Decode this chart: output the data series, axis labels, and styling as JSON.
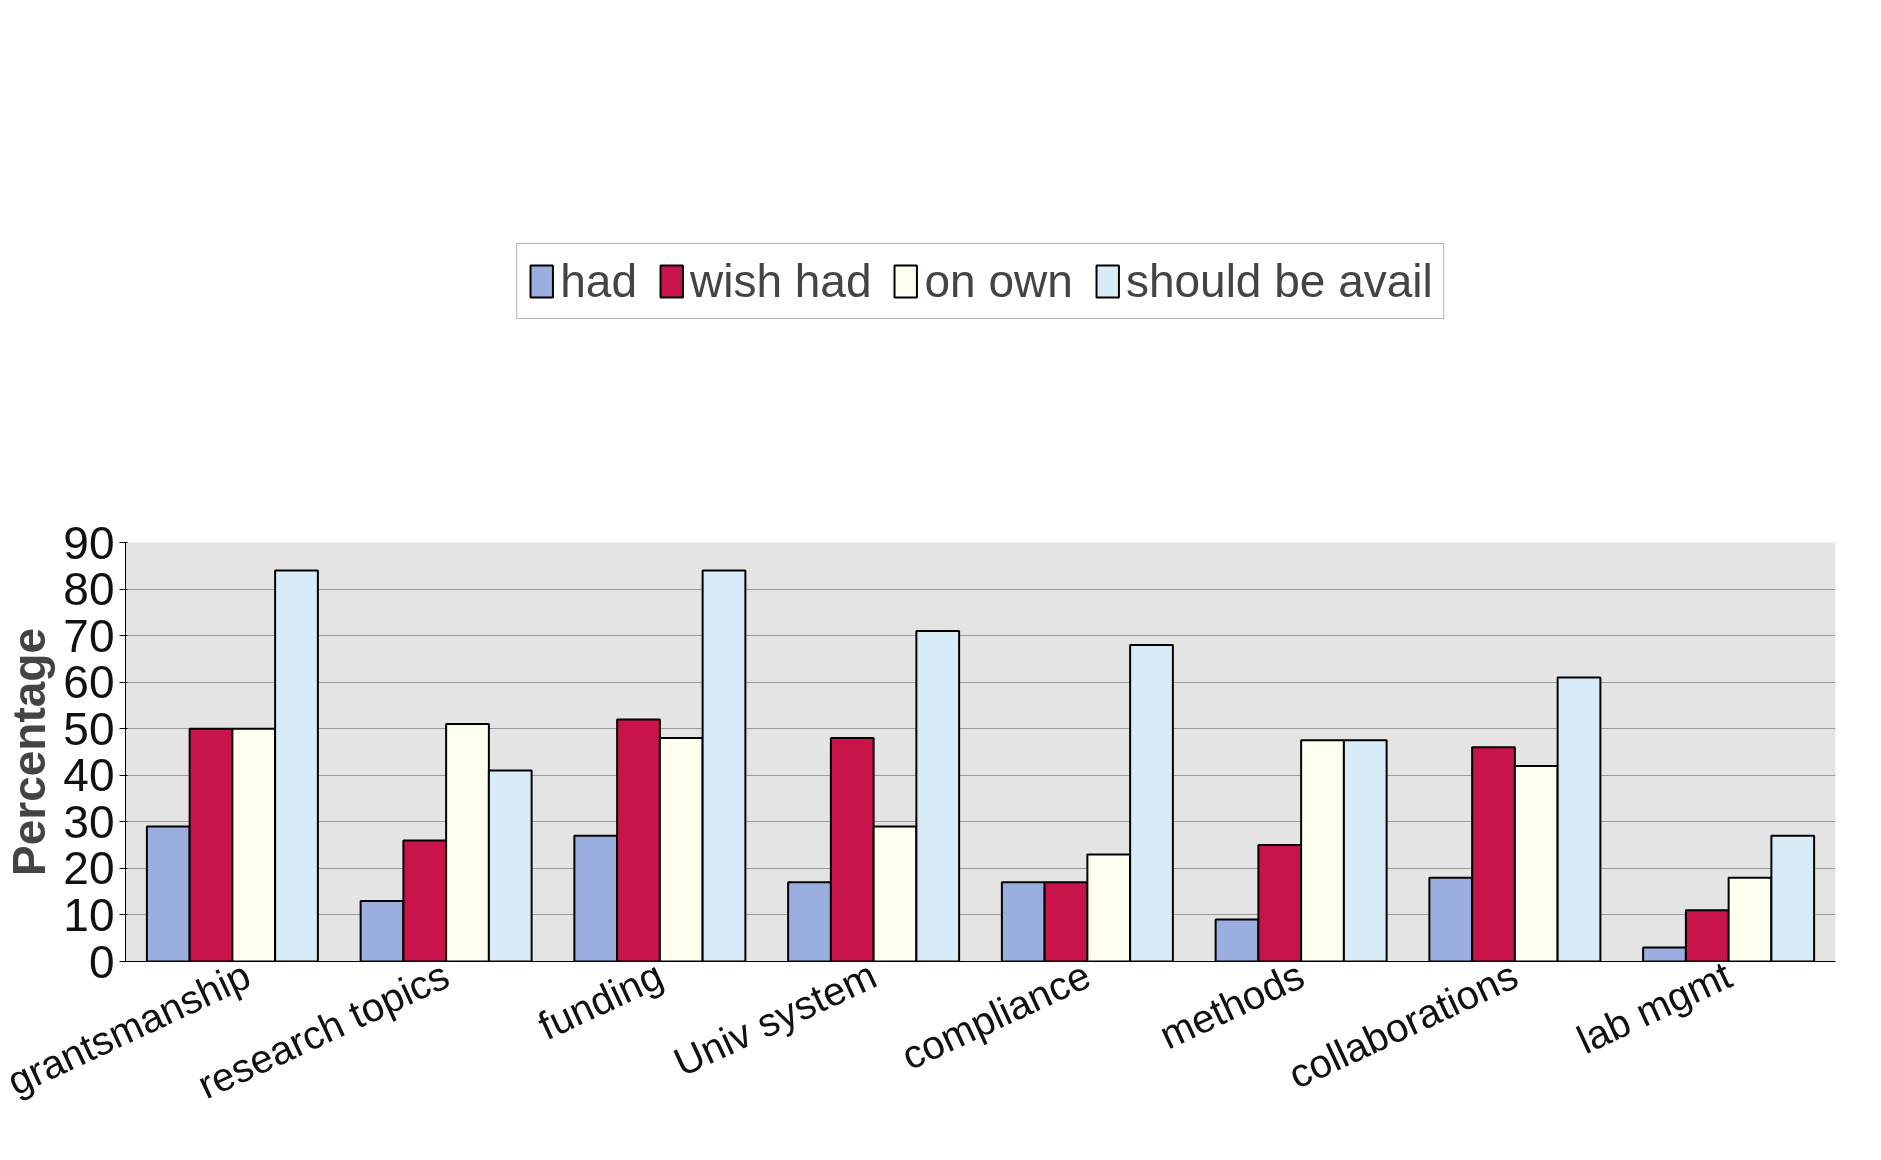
{
  "chart_data": {
    "type": "bar",
    "ylabel": "Percentage",
    "categories": [
      "grantsmanship",
      "research topics",
      "funding",
      "Univ system",
      "compliance",
      "methods",
      "collaborations",
      "lab mgmt"
    ],
    "series": [
      {
        "name": "had",
        "color": "#9aaee0",
        "values": [
          29,
          13,
          27,
          17,
          17,
          9,
          18,
          3
        ]
      },
      {
        "name": "wish had",
        "color": "#c8144a",
        "values": [
          50,
          26,
          52,
          48,
          17,
          25,
          46,
          11
        ]
      },
      {
        "name": "on own",
        "color": "#fffff0",
        "values": [
          50,
          51,
          48,
          29,
          23,
          47.5,
          42,
          18
        ]
      },
      {
        "name": "should be avail",
        "color": "#d8ecf8",
        "values": [
          84,
          41,
          84,
          71,
          68,
          47.5,
          61,
          27
        ]
      }
    ],
    "ylim": [
      0,
      90
    ],
    "yticks": [
      0,
      10,
      20,
      30,
      40,
      50,
      60,
      70,
      80,
      90
    ],
    "grid": "y",
    "legend": "top"
  }
}
